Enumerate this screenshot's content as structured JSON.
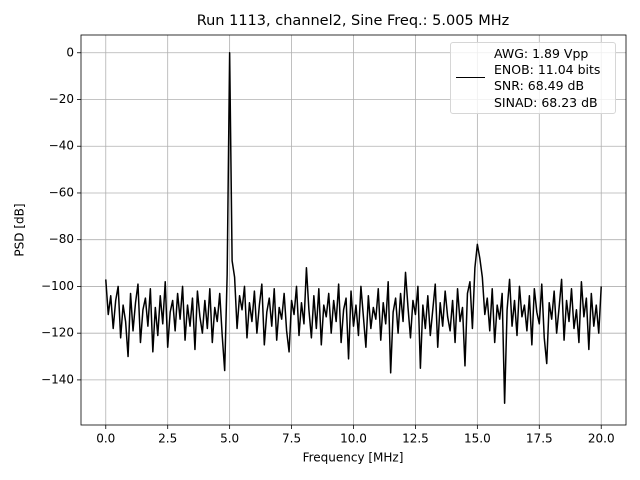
{
  "chart_data": {
    "type": "line",
    "title": "Run 1113, channel2, Sine Freq.: 5.005 MHz",
    "xlabel": "Frequency [MHz]",
    "ylabel": "PSD [dB]",
    "xlim": [
      -1,
      21
    ],
    "ylim": [
      -159.3,
      7.6
    ],
    "xticks": [
      {
        "value": 0,
        "label": "0.0"
      },
      2.5,
      {
        "value": 5,
        "label": "5.0"
      },
      7.5,
      {
        "value": 10,
        "label": "10.0"
      },
      12.5,
      {
        "value": 15,
        "label": "15.0"
      },
      17.5,
      {
        "value": 20,
        "label": "20.0"
      }
    ],
    "yticks": [
      0,
      -20,
      -40,
      -60,
      -80,
      -100,
      -120,
      -140
    ],
    "grid": true,
    "legend": "upper right",
    "x": [
      0,
      0.1,
      0.2,
      0.3,
      0.4,
      0.5,
      0.6,
      0.7,
      0.8,
      0.9,
      1,
      1.1,
      1.2,
      1.3,
      1.4,
      1.5,
      1.6,
      1.7,
      1.8,
      1.9,
      2,
      2.1,
      2.2,
      2.3,
      2.4,
      2.5,
      2.6,
      2.7,
      2.8,
      2.9,
      3,
      3.1,
      3.2,
      3.3,
      3.4,
      3.5,
      3.6,
      3.7,
      3.8,
      3.9,
      4,
      4.1,
      4.2,
      4.3,
      4.4,
      4.5,
      4.6,
      4.7,
      4.8,
      4.9,
      5,
      5.1,
      5.2,
      5.3,
      5.4,
      5.5,
      5.6,
      5.7,
      5.8,
      5.9,
      6,
      6.1,
      6.2,
      6.3,
      6.4,
      6.5,
      6.6,
      6.7,
      6.8,
      6.9,
      7,
      7.1,
      7.2,
      7.3,
      7.4,
      7.5,
      7.6,
      7.7,
      7.8,
      7.9,
      8,
      8.1,
      8.2,
      8.3,
      8.4,
      8.5,
      8.6,
      8.7,
      8.8,
      8.9,
      9,
      9.1,
      9.2,
      9.3,
      9.4,
      9.5,
      9.6,
      9.7,
      9.8,
      9.9,
      10,
      10.1,
      10.2,
      10.3,
      10.4,
      10.5,
      10.6,
      10.7,
      10.8,
      10.9,
      11,
      11.1,
      11.2,
      11.3,
      11.4,
      11.5,
      11.6,
      11.7,
      11.8,
      11.9,
      12,
      12.1,
      12.2,
      12.3,
      12.4,
      12.5,
      12.6,
      12.7,
      12.8,
      12.9,
      13,
      13.1,
      13.2,
      13.3,
      13.4,
      13.5,
      13.6,
      13.7,
      13.8,
      13.9,
      14,
      14.1,
      14.2,
      14.3,
      14.4,
      14.5,
      14.6,
      14.7,
      14.8,
      14.9,
      15,
      15.1,
      15.2,
      15.3,
      15.4,
      15.5,
      15.6,
      15.7,
      15.8,
      15.9,
      16,
      16.1,
      16.2,
      16.3,
      16.4,
      16.5,
      16.6,
      16.7,
      16.8,
      16.9,
      17,
      17.1,
      17.2,
      17.3,
      17.4,
      17.5,
      17.6,
      17.7,
      17.8,
      17.9,
      18,
      18.1,
      18.2,
      18.3,
      18.4,
      18.5,
      18.6,
      18.7,
      18.8,
      18.9,
      19,
      19.1,
      19.2,
      19.3,
      19.4,
      19.5,
      19.6,
      19.7,
      19.8,
      19.9,
      20
    ],
    "series": [
      {
        "name": "AWG: 1.89 Vpp\nENOB: 11.04 bits\nSNR: 68.49 dB\nSINAD: 68.23 dB",
        "color": "#000000",
        "values": [
          -97,
          -112,
          -104,
          -118,
          -106,
          -100,
          -122,
          -108,
          -115,
          -130,
          -103,
          -119,
          -107,
          -99,
          -124,
          -110,
          -105,
          -117,
          -101,
          -128,
          -109,
          -121,
          -104,
          -116,
          -98,
          -126,
          -111,
          -106,
          -119,
          -103,
          -114,
          -100,
          -123,
          -108,
          -117,
          -105,
          -127,
          -102,
          -113,
          -120,
          -106,
          -118,
          -101,
          -124,
          -109,
          -115,
          -103,
          -121,
          -136,
          -95,
          0,
          -89,
          -96,
          -118,
          -104,
          -110,
          -100,
          -122,
          -107,
          -115,
          -102,
          -120,
          -108,
          -99,
          -125,
          -111,
          -105,
          -117,
          -101,
          -123,
          -109,
          -114,
          -103,
          -119,
          -128,
          -106,
          -112,
          -100,
          -121,
          -107,
          -116,
          -92,
          -110,
          -122,
          -104,
          -118,
          -101,
          -125,
          -108,
          -113,
          -103,
          -120,
          -106,
          -115,
          -99,
          -124,
          -110,
          -105,
          -131,
          -102,
          -117,
          -108,
          -121,
          -100,
          -113,
          -126,
          -104,
          -118,
          -109,
          -114,
          -101,
          -123,
          -107,
          -116,
          -98,
          -137,
          -111,
          -105,
          -120,
          -103,
          -115,
          -94,
          -109,
          -122,
          -106,
          -112,
          -100,
          -135,
          -108,
          -118,
          -104,
          -121,
          -110,
          -99,
          -126,
          -107,
          -117,
          -102,
          -113,
          -119,
          -106,
          -124,
          -101,
          -115,
          -109,
          -134,
          -103,
          -98,
          -118,
          -92,
          -82,
          -88,
          -96,
          -112,
          -105,
          -119,
          -101,
          -124,
          -108,
          -114,
          -103,
          -150,
          -110,
          -97,
          -117,
          -106,
          -121,
          -100,
          -113,
          -108,
          -119,
          -104,
          -125,
          -101,
          -111,
          -116,
          -99,
          -122,
          -133,
          -107,
          -114,
          -102,
          -120,
          -109,
          -97,
          -123,
          -106,
          -115,
          -101,
          -118,
          -110,
          -124,
          -98,
          -113,
          -105,
          -127,
          -103,
          -117,
          -108,
          -120,
          -100
        ]
      }
    ]
  }
}
